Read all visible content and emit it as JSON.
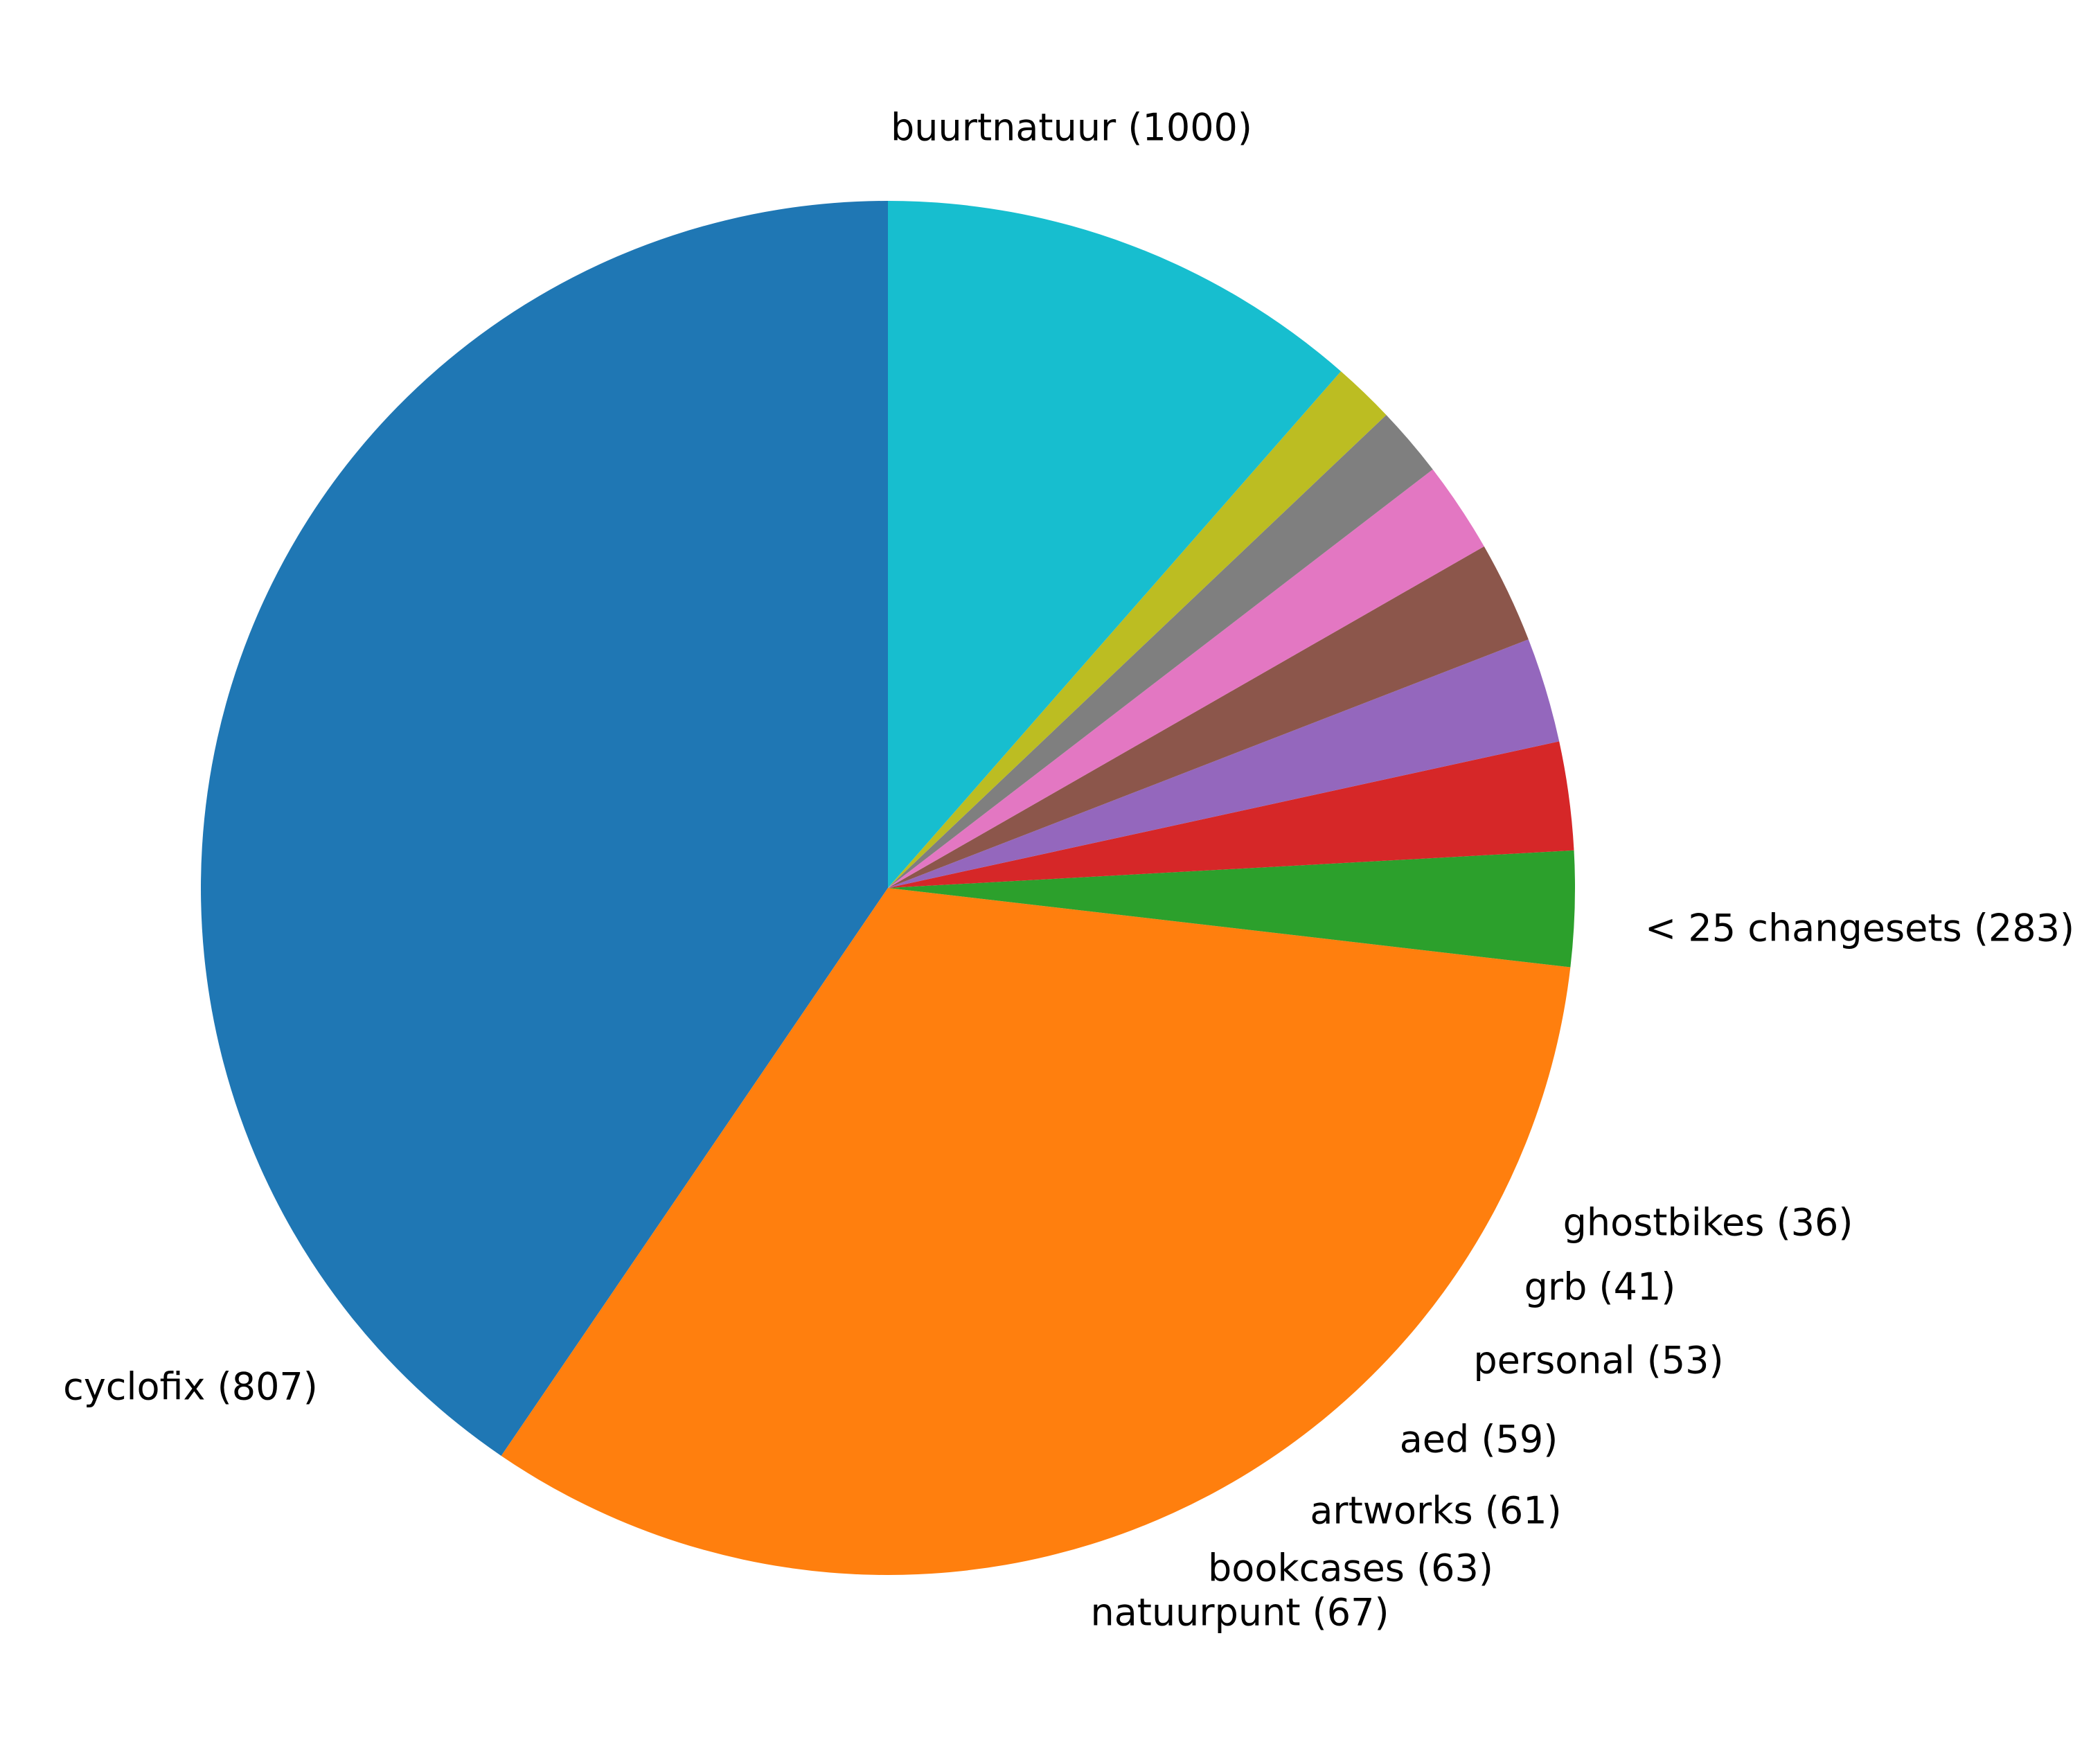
{
  "chart_data": {
    "type": "pie",
    "start_angle_deg": 90,
    "direction": "counterclockwise",
    "slices": [
      {
        "label": "buurtnatuur (1000)",
        "value": 1000,
        "color": "#1f77b4"
      },
      {
        "label": "cyclofix (807)",
        "value": 807,
        "color": "#ff7f0e"
      },
      {
        "label": "natuurpunt (67)",
        "value": 67,
        "color": "#2ca02c"
      },
      {
        "label": "bookcases (63)",
        "value": 63,
        "color": "#d62728"
      },
      {
        "label": "artworks (61)",
        "value": 61,
        "color": "#9467bd"
      },
      {
        "label": "aed (59)",
        "value": 59,
        "color": "#8c564b"
      },
      {
        "label": "personal (53)",
        "value": 53,
        "color": "#e377c2"
      },
      {
        "label": "grb (41)",
        "value": 41,
        "color": "#7f7f7f"
      },
      {
        "label": "ghostbikes (36)",
        "value": 36,
        "color": "#bcbd22"
      },
      {
        "label": "< 25 changesets (283)",
        "value": 283,
        "color": "#17becf"
      }
    ]
  }
}
